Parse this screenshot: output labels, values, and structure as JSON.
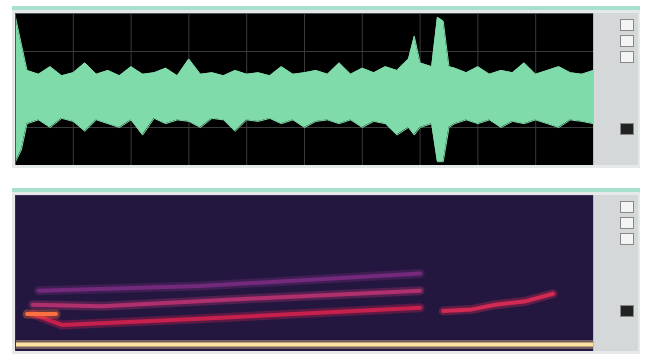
{
  "chart_data": [
    {
      "type": "area",
      "color": "#7fdcaa",
      "grid": true,
      "tick_labels": false,
      "xlim": [
        0,
        100
      ],
      "ylim": [
        -1,
        1
      ],
      "xticks": [
        0,
        10,
        20,
        30,
        40,
        50,
        60,
        70,
        80,
        90,
        100
      ],
      "yticks": [
        -1,
        -0.5,
        0,
        0.5,
        1
      ],
      "x": [
        0,
        1,
        2,
        4,
        6,
        8,
        10,
        12,
        14,
        16,
        18,
        20,
        22,
        24,
        26,
        28,
        30,
        32,
        34,
        36,
        38,
        40,
        42,
        44,
        46,
        48,
        50,
        52,
        54,
        56,
        58,
        60,
        62,
        64,
        66,
        68,
        69,
        70,
        72,
        73,
        74,
        75,
        76,
        78,
        80,
        82,
        84,
        86,
        88,
        90,
        92,
        94,
        96,
        98,
        100
      ],
      "upper": [
        0.95,
        0.6,
        0.25,
        0.2,
        0.3,
        0.18,
        0.22,
        0.35,
        0.2,
        0.25,
        0.18,
        0.3,
        0.2,
        0.22,
        0.28,
        0.18,
        0.4,
        0.2,
        0.22,
        0.18,
        0.25,
        0.2,
        0.22,
        0.18,
        0.3,
        0.2,
        0.22,
        0.25,
        0.2,
        0.35,
        0.2,
        0.28,
        0.22,
        0.3,
        0.25,
        0.4,
        0.7,
        0.35,
        0.3,
        0.95,
        0.9,
        0.3,
        0.28,
        0.22,
        0.3,
        0.2,
        0.25,
        0.22,
        0.35,
        0.2,
        0.25,
        0.3,
        0.22,
        0.2,
        0.25
      ],
      "lower": [
        -0.95,
        -0.8,
        -0.45,
        -0.4,
        -0.5,
        -0.38,
        -0.42,
        -0.55,
        -0.4,
        -0.45,
        -0.5,
        -0.4,
        -0.6,
        -0.38,
        -0.45,
        -0.4,
        -0.42,
        -0.5,
        -0.38,
        -0.4,
        -0.55,
        -0.4,
        -0.42,
        -0.38,
        -0.45,
        -0.4,
        -0.5,
        -0.42,
        -0.4,
        -0.45,
        -0.4,
        -0.5,
        -0.42,
        -0.45,
        -0.6,
        -0.5,
        -0.6,
        -0.5,
        -0.45,
        -0.95,
        -0.95,
        -0.5,
        -0.45,
        -0.4,
        -0.45,
        -0.4,
        -0.5,
        -0.42,
        -0.45,
        -0.4,
        -0.45,
        -0.5,
        -0.4,
        -0.42,
        -0.45
      ]
    },
    {
      "type": "line",
      "tick_labels": false,
      "xlim": [
        0,
        100
      ],
      "ylim": [
        0,
        10
      ],
      "series": [
        {
          "color": "#ffe2a0",
          "x": [
            0,
            100
          ],
          "values": [
            0.45,
            0.45
          ]
        },
        {
          "color": "#c8204c",
          "x": [
            3,
            8,
            32,
            70
          ],
          "values": [
            2.4,
            1.7,
            2.1,
            2.8
          ]
        },
        {
          "color": "#b0306e",
          "x": [
            3,
            15,
            41,
            70
          ],
          "values": [
            3.0,
            2.9,
            3.4,
            3.9
          ]
        },
        {
          "color": "#742a7c",
          "x": [
            4,
            32,
            70
          ],
          "values": [
            3.9,
            4.2,
            5.0
          ]
        },
        {
          "color": "#d22a52",
          "x": [
            74,
            79,
            83,
            88,
            93
          ],
          "values": [
            2.6,
            2.7,
            3.0,
            3.2,
            3.7
          ]
        },
        {
          "color": "#ff7040",
          "x": [
            2,
            7
          ],
          "values": [
            2.4,
            2.4
          ]
        }
      ]
    }
  ]
}
